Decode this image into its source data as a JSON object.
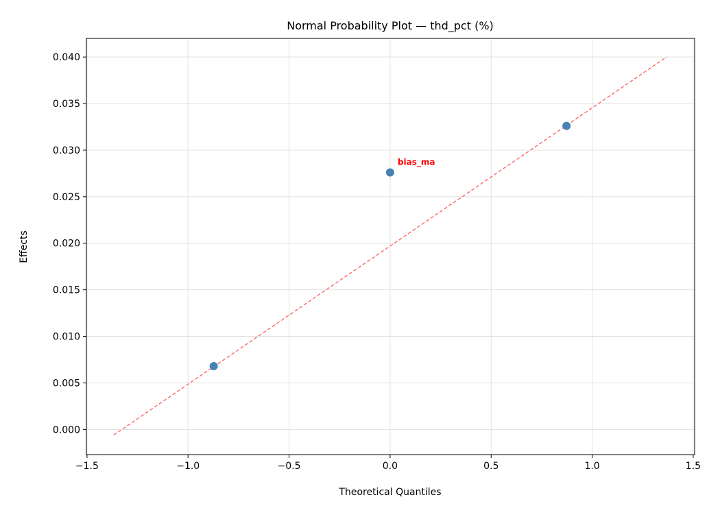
{
  "chart_data": {
    "type": "scatter",
    "title": "Normal Probability Plot — thd_pct (%)",
    "xlabel": "Theoretical Quantiles",
    "ylabel": "Effects",
    "xlim": [
      -1.503,
      1.507
    ],
    "ylim": [
      -0.0027,
      0.042
    ],
    "grid": true,
    "xticks": [
      -1.5,
      -1.0,
      -0.5,
      0.0,
      0.5,
      1.0,
      1.5
    ],
    "xtick_labels": [
      "−1.5",
      "−1.0",
      "−0.5",
      "0.0",
      "0.5",
      "1.0",
      "1.5"
    ],
    "yticks": [
      0.0,
      0.005,
      0.01,
      0.015,
      0.02,
      0.025,
      0.03,
      0.035,
      0.04
    ],
    "ytick_labels": [
      "0.000",
      "0.005",
      "0.010",
      "0.015",
      "0.020",
      "0.025",
      "0.030",
      "0.035",
      "0.040"
    ],
    "points": [
      {
        "x": -0.873,
        "y": 0.0068,
        "label": ""
      },
      {
        "x": 0.0,
        "y": 0.0276,
        "label": "bias_ma"
      },
      {
        "x": 0.873,
        "y": 0.0326,
        "label": ""
      }
    ],
    "reference_line": {
      "x": [
        -1.368,
        1.368
      ],
      "y": [
        -0.0006,
        0.04
      ],
      "style": "dashed"
    },
    "colors": {
      "points": "#4682b4",
      "reference_line": "#ff6666",
      "annotation": "#ff0000",
      "grid": "#e0e0e0"
    }
  }
}
